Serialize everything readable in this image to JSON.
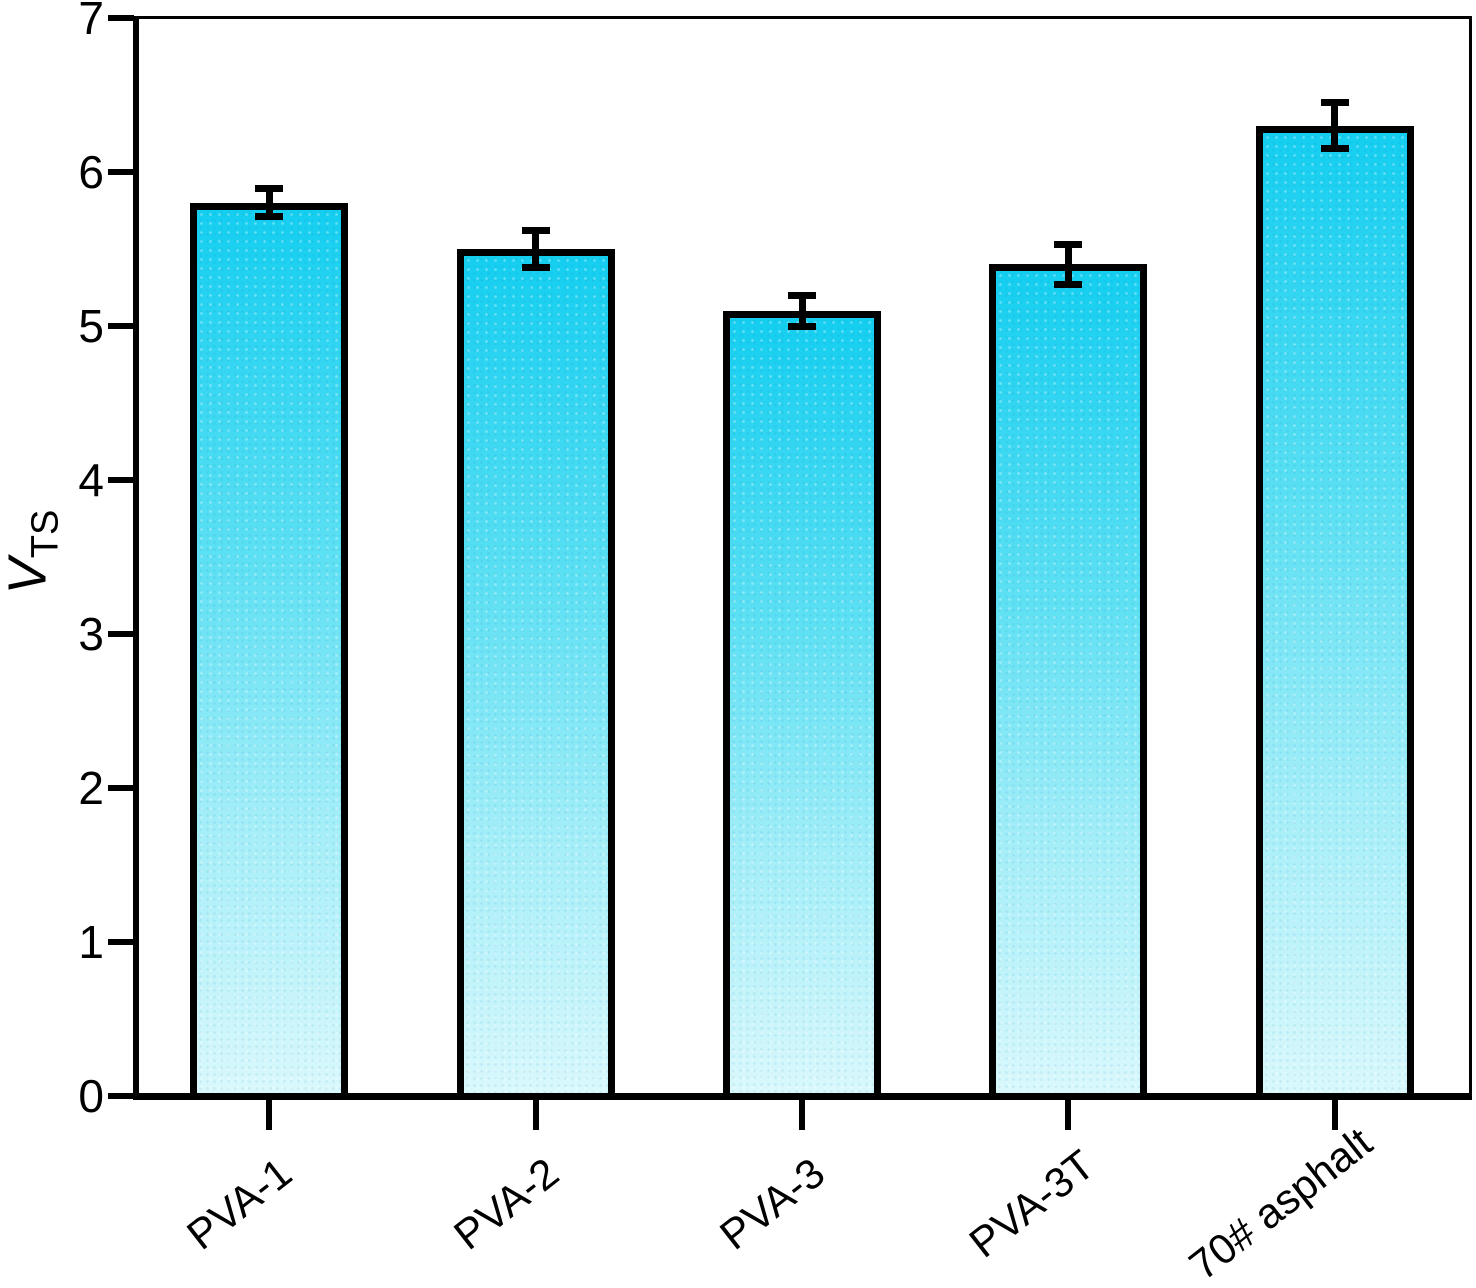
{
  "chart_data": {
    "type": "bar",
    "title": "",
    "xlabel": "",
    "ylabel": "V_TS",
    "ylabel_main": "V",
    "ylabel_subscript": "TS",
    "categories": [
      "PVA-1",
      "PVA-2",
      "PVA-3",
      "PVA-3T",
      "70# asphalt"
    ],
    "values": [
      5.8,
      5.5,
      5.1,
      5.4,
      6.3
    ],
    "errors": [
      0.09,
      0.12,
      0.1,
      0.13,
      0.15
    ],
    "ylim": [
      0,
      7
    ],
    "yticks": [
      0,
      1,
      2,
      3,
      4,
      5,
      6,
      7
    ],
    "grid": false,
    "legend": "none",
    "xtick_rotation_deg": -38,
    "colors": {
      "bar_gradient_top": "#14cef0",
      "bar_gradient_upper_mid": "#5ee0f3",
      "bar_gradient_lower_mid": "#a5eef8",
      "bar_gradient_bottom": "#d9f8fc",
      "bar_border": "#000000",
      "error_bar": "#000000",
      "axis": "#000000",
      "background": "#ffffff",
      "text": "#000000"
    }
  }
}
